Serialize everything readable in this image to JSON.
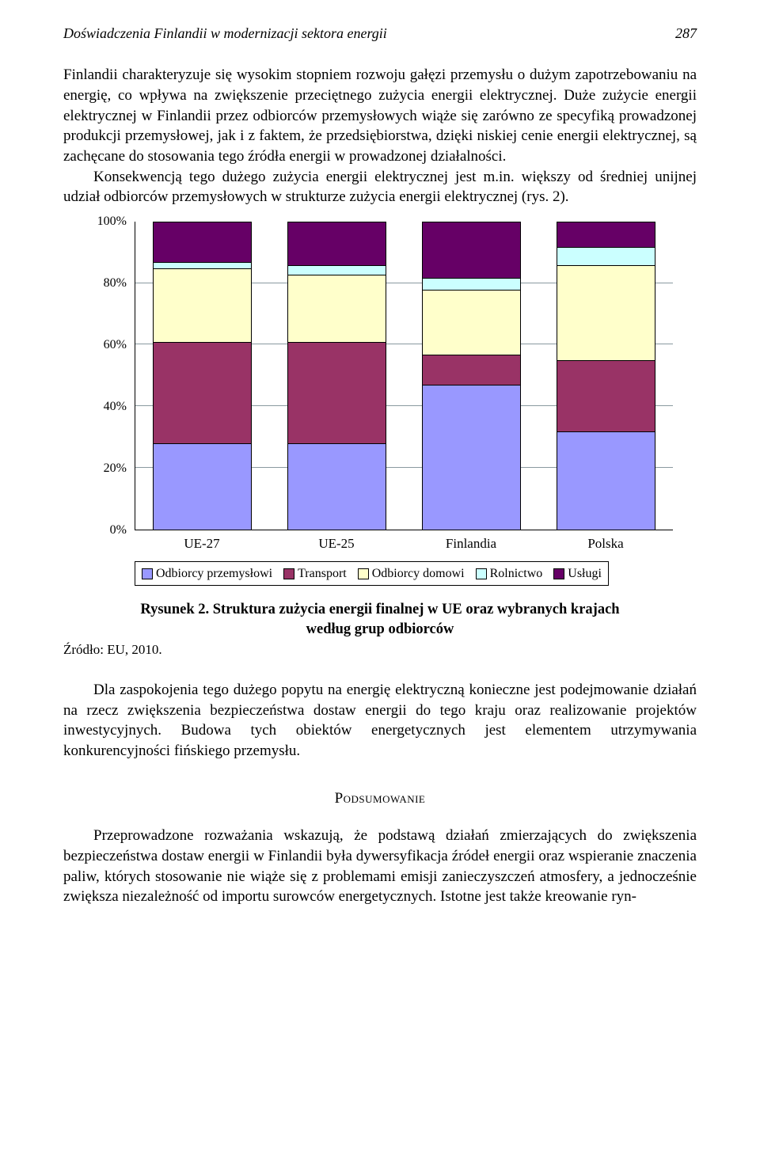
{
  "header": {
    "title_left": "Doświadczenia Finlandii w modernizacji sektora energii",
    "page_number": "287"
  },
  "para1": "Finlandii charakteryzuje się wysokim stopniem rozwoju gałęzi przemysłu o dużym zapotrzebowaniu na energię, co wpływa na zwiększenie przeciętnego zużycia energii elektrycznej. Duże zużycie energii elektrycznej w Finlandii przez odbiorców przemysłowych wiąże się zarówno ze specyfiką prowadzonej produkcji przemysłowej, jak i z faktem, że przedsiębiorstwa, dzięki niskiej cenie energii elektrycznej, są zachęcane do stosowania tego źródła energii w prowadzonej działalności.",
  "para1b": "Konsekwencją tego dużego zużycia energii elektrycznej jest m.in. większy od średniej unijnej udział odbiorców przemysłowych w strukturze zużycia energii elektrycznej (rys. 2).",
  "chart": {
    "type": "stacked-bar-percent",
    "y_ticks": [
      "0%",
      "20%",
      "40%",
      "60%",
      "80%",
      "100%"
    ],
    "y_tick_positions_pct": [
      0,
      20,
      40,
      60,
      80,
      100
    ],
    "categories": [
      "UE-27",
      "UE-25",
      "Finlandia",
      "Polska"
    ],
    "series": [
      {
        "name": "Odbiorcy przemysłowi",
        "color": "#9998ff"
      },
      {
        "name": "Transport",
        "color": "#993366"
      },
      {
        "name": "Odbiorcy domowi",
        "color": "#ffffcb"
      },
      {
        "name": "Rolnictwo",
        "color": "#cbffff"
      },
      {
        "name": "Usługi",
        "color": "#660066"
      }
    ],
    "values": [
      [
        28,
        33,
        24,
        2,
        13
      ],
      [
        28,
        33,
        22,
        3,
        14
      ],
      [
        47,
        10,
        21,
        4,
        18
      ],
      [
        32,
        23,
        31,
        6,
        8
      ]
    ],
    "plot_background": "#ffffff",
    "grid_color": "#8a9aa0"
  },
  "figure": {
    "caption_a": "Rysunek 2. Struktura zużycia energii finalnej w UE oraz wybranych krajach",
    "caption_b": "według grup odbiorców",
    "source": "Źródło: EU, 2010."
  },
  "para2": "Dla zaspokojenia tego dużego popytu na energię elektryczną konieczne jest podejmowanie działań na rzecz zwiększenia bezpieczeństwa dostaw energii do tego kraju oraz realizowanie projektów inwestycyjnych. Budowa tych obiektów energetycznych jest elementem utrzymywania konkurencyjności fińskiego przemysłu.",
  "section_heading": "Podsumowanie",
  "para3": "Przeprowadzone rozważania wskazują, że podstawą działań zmierzających do zwiększenia bezpieczeństwa dostaw energii w Finlandii była dywersyfikacja źródeł energii oraz wspieranie znaczenia paliw, których stosowanie nie wiąże się z problemami emisji zanieczyszczeń atmosfery, a jednocześnie zwiększa niezależność od importu surowców energetycznych. Istotne jest także kreowanie ryn-"
}
